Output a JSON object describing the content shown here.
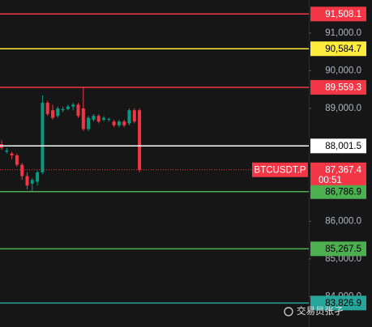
{
  "chart_data": {
    "type": "candlestick",
    "ylim": [
      83190,
      91880
    ],
    "yticks": [
      {
        "value": 91000,
        "label": "91,000.0"
      },
      {
        "value": 90000,
        "label": "90,000.0"
      },
      {
        "value": 89000,
        "label": "89,000.0"
      },
      {
        "value": 86000,
        "label": "86,000.0"
      },
      {
        "value": 85000,
        "label": "85,000.0"
      },
      {
        "value": 84000,
        "label": "84,000.0"
      }
    ],
    "up_color": "#089981",
    "down_color": "#f23645",
    "candles": [
      {
        "open": 88050,
        "high": 88150,
        "low": 87900,
        "close": 87950
      },
      {
        "open": 87850,
        "high": 87950,
        "low": 87800,
        "close": 87880
      },
      {
        "open": 87800,
        "high": 87850,
        "low": 87650,
        "close": 87750
      },
      {
        "open": 87750,
        "high": 87800,
        "low": 87450,
        "close": 87500
      },
      {
        "open": 87500,
        "high": 87550,
        "low": 87100,
        "close": 87200
      },
      {
        "open": 87200,
        "high": 87300,
        "low": 86850,
        "close": 86950
      },
      {
        "open": 87000,
        "high": 87150,
        "low": 86800,
        "close": 87100
      },
      {
        "open": 87050,
        "high": 87350,
        "low": 86950,
        "close": 87300
      },
      {
        "open": 87300,
        "high": 89350,
        "low": 87250,
        "close": 89150
      },
      {
        "open": 89150,
        "high": 89200,
        "low": 88800,
        "close": 88850
      },
      {
        "open": 88950,
        "high": 89100,
        "low": 88700,
        "close": 88750
      },
      {
        "open": 88800,
        "high": 89050,
        "low": 88750,
        "close": 89000
      },
      {
        "open": 88950,
        "high": 89050,
        "low": 88900,
        "close": 88980
      },
      {
        "open": 88980,
        "high": 89100,
        "low": 88950,
        "close": 89050
      },
      {
        "open": 89050,
        "high": 89150,
        "low": 88950,
        "close": 89100
      },
      {
        "open": 89100,
        "high": 89150,
        "low": 88750,
        "close": 88800
      },
      {
        "open": 89000,
        "high": 89550,
        "low": 88400,
        "close": 88450
      },
      {
        "open": 88450,
        "high": 88800,
        "low": 88400,
        "close": 88750
      },
      {
        "open": 88700,
        "high": 88850,
        "low": 88650,
        "close": 88800
      },
      {
        "open": 88800,
        "high": 88850,
        "low": 88600,
        "close": 88650
      },
      {
        "open": 88700,
        "high": 88800,
        "low": 88650,
        "close": 88750
      },
      {
        "open": 88700,
        "high": 88750,
        "low": 88650,
        "close": 88720
      },
      {
        "open": 88650,
        "high": 88700,
        "low": 88500,
        "close": 88550
      },
      {
        "open": 88550,
        "high": 88700,
        "low": 88500,
        "close": 88650
      },
      {
        "open": 88650,
        "high": 88700,
        "low": 88500,
        "close": 88550
      },
      {
        "open": 88600,
        "high": 89000,
        "low": 88550,
        "close": 88950
      },
      {
        "open": 88950,
        "high": 89000,
        "low": 88600,
        "close": 88650
      },
      {
        "open": 88950,
        "high": 89000,
        "low": 87300,
        "close": 87367.4
      }
    ],
    "levels": [
      {
        "value": 91508.1,
        "label": "91,508.1",
        "color": "#f23645",
        "text_color": "#ffffff"
      },
      {
        "value": 90584.7,
        "label": "90,584.7",
        "color": "#ffeb3b",
        "text_color": "#000000"
      },
      {
        "value": 89559.3,
        "label": "89,559.3",
        "color": "#f23645",
        "text_color": "#ffffff"
      },
      {
        "value": 88001.5,
        "label": "88,001.5",
        "color": "#ffffff",
        "text_color": "#000000"
      },
      {
        "value": 86786.9,
        "label": "86,786.9",
        "color": "#4caf50",
        "text_color": "#000000"
      },
      {
        "value": 85267.5,
        "label": "85,267.5",
        "color": "#4caf50",
        "text_color": "#000000"
      },
      {
        "value": 83826.9,
        "label": "83,826.9",
        "color": "#26a69a",
        "text_color": "#000000"
      }
    ],
    "current": {
      "symbol": "BTCUSDT.P",
      "value": 87367.4,
      "label": "87,367.4",
      "countdown": "00:51",
      "color": "#f23645"
    },
    "watermark": "交易员张孑"
  }
}
